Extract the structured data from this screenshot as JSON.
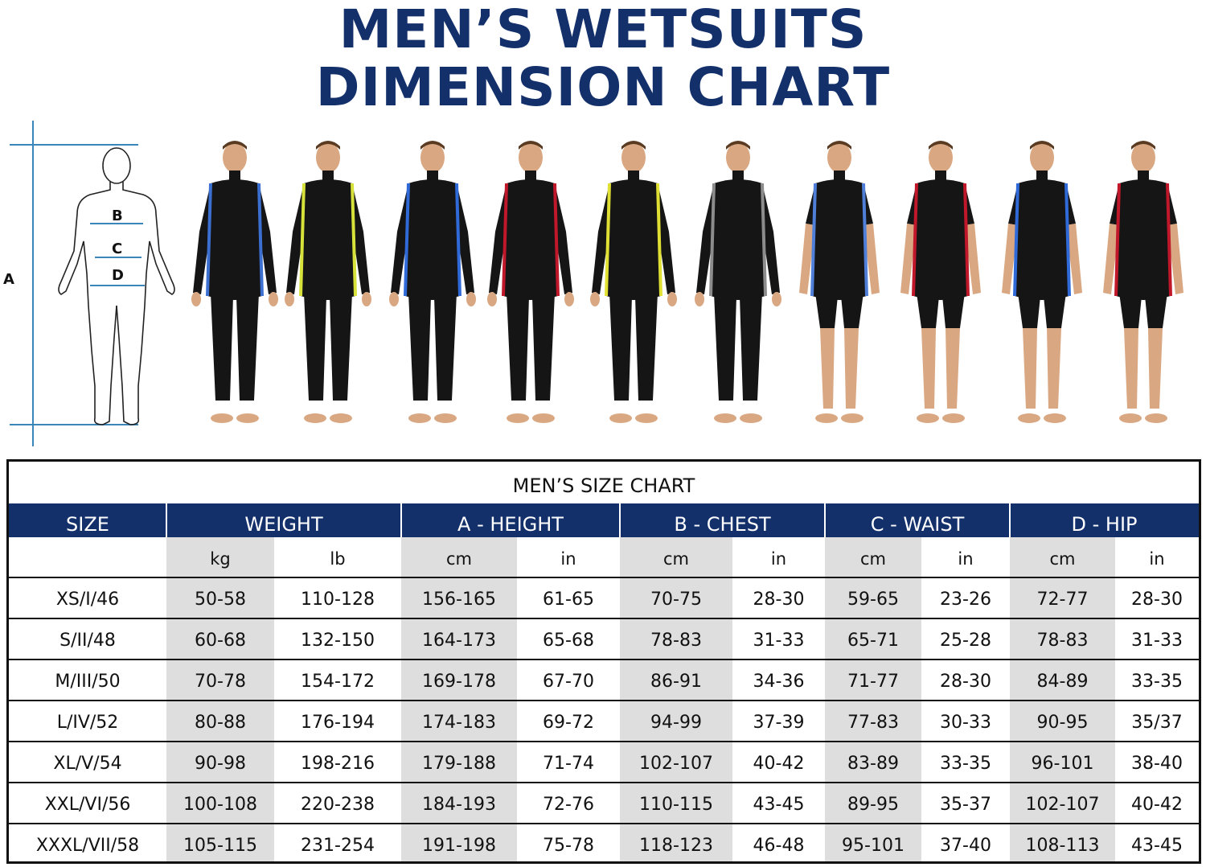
{
  "title_line1": "MEN’S WETSUITS",
  "title_line2": "DIMENSION CHART",
  "diagram": {
    "label_a": "A",
    "label_b": "B",
    "label_c": "C",
    "label_d": "D"
  },
  "models": [
    {
      "type": "fullsuit",
      "accent": "#3b6fd0"
    },
    {
      "type": "fullsuit",
      "accent": "#d6e23a"
    },
    {
      "type": "fullsuit",
      "accent": "#2f6ad8"
    },
    {
      "type": "fullsuit",
      "accent": "#c0182a"
    },
    {
      "type": "fullsuit",
      "accent": "#e0df34"
    },
    {
      "type": "fullsuit",
      "accent": "#8c8c8c"
    },
    {
      "type": "shorty",
      "accent": "#4f7fd8"
    },
    {
      "type": "shorty",
      "accent": "#c0182a"
    },
    {
      "type": "shorty",
      "accent": "#2f6ad8"
    },
    {
      "type": "shorty",
      "accent": "#c0182a"
    }
  ],
  "table": {
    "title": "MEN’S SIZE CHART",
    "header_color": "#13306b",
    "groups": [
      "SIZE",
      "WEIGHT",
      "A - HEIGHT",
      "B - CHEST",
      "C - WAIST",
      "D - HIP"
    ],
    "units": [
      "",
      "kg",
      "lb",
      "cm",
      "in",
      "cm",
      "in",
      "cm",
      "in",
      "cm",
      "in"
    ],
    "rows": [
      [
        "XS/I/46",
        "50-58",
        "110-128",
        "156-165",
        "61-65",
        "70-75",
        "28-30",
        "59-65",
        "23-26",
        "72-77",
        "28-30"
      ],
      [
        "S/II/48",
        "60-68",
        "132-150",
        "164-173",
        "65-68",
        "78-83",
        "31-33",
        "65-71",
        "25-28",
        "78-83",
        "31-33"
      ],
      [
        "M/III/50",
        "70-78",
        "154-172",
        "169-178",
        "67-70",
        "86-91",
        "34-36",
        "71-77",
        "28-30",
        "84-89",
        "33-35"
      ],
      [
        "L/IV/52",
        "80-88",
        "176-194",
        "174-183",
        "69-72",
        "94-99",
        "37-39",
        "77-83",
        "30-33",
        "90-95",
        "35/37"
      ],
      [
        "XL/V/54",
        "90-98",
        "198-216",
        "179-188",
        "71-74",
        "102-107",
        "40-42",
        "83-89",
        "33-35",
        "96-101",
        "38-40"
      ],
      [
        "XXL/VI/56",
        "100-108",
        "220-238",
        "184-193",
        "72-76",
        "110-115",
        "43-45",
        "89-95",
        "35-37",
        "102-107",
        "40-42"
      ],
      [
        "XXXL/VII/58",
        "105-115",
        "231-254",
        "191-198",
        "75-78",
        "118-123",
        "46-48",
        "95-101",
        "37-40",
        "108-113",
        "43-45"
      ]
    ]
  }
}
